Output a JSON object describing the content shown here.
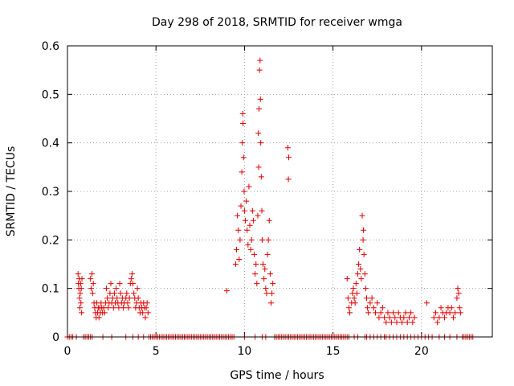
{
  "chart_data": {
    "type": "scatter",
    "title": "Day 298 of 2018, SRMTID for receiver wmga",
    "xlabel": "GPS time / hours",
    "ylabel": "SRMTID / TECUs",
    "xlim": [
      0,
      24
    ],
    "ylim": [
      0,
      0.6
    ],
    "xticks": [
      0,
      5,
      10,
      15,
      20
    ],
    "xtick_labels": [
      "0",
      "5",
      "10",
      "15",
      "20"
    ],
    "yticks": [
      0,
      0.1,
      0.2,
      0.3,
      0.4,
      0.5,
      0.6
    ],
    "ytick_labels": [
      "0",
      "0.1",
      "0.2",
      "0.3",
      "0.4",
      "0.5",
      "0.6"
    ],
    "grid": true,
    "marker": "plus",
    "series": [
      {
        "name": "SRMTID",
        "color": "#e00000",
        "points": [
          [
            0.6,
            0.13
          ],
          [
            0.62,
            0.11
          ],
          [
            0.64,
            0.1
          ],
          [
            0.66,
            0.12
          ],
          [
            0.68,
            0.08
          ],
          [
            0.7,
            0.06
          ],
          [
            0.72,
            0.09
          ],
          [
            0.74,
            0.11
          ],
          [
            0.76,
            0.07
          ],
          [
            0.78,
            0.1
          ],
          [
            0.8,
            0.05
          ],
          [
            0.82,
            0.12
          ],
          [
            1.3,
            0.12
          ],
          [
            1.34,
            0.1
          ],
          [
            1.38,
            0.13
          ],
          [
            1.42,
            0.09
          ],
          [
            1.46,
            0.11
          ],
          [
            1.5,
            0.07
          ],
          [
            1.54,
            0.06
          ],
          [
            1.58,
            0.05
          ],
          [
            1.62,
            0.04
          ],
          [
            1.66,
            0.07
          ],
          [
            1.7,
            0.05
          ],
          [
            1.74,
            0.06
          ],
          [
            1.78,
            0.04
          ],
          [
            1.82,
            0.06
          ],
          [
            1.86,
            0.05
          ],
          [
            1.9,
            0.07
          ],
          [
            1.94,
            0.06
          ],
          [
            1.98,
            0.05
          ],
          [
            2.05,
            0.06
          ],
          [
            2.1,
            0.05
          ],
          [
            2.15,
            0.07
          ],
          [
            2.2,
            0.1
          ],
          [
            2.25,
            0.08
          ],
          [
            2.3,
            0.06
          ],
          [
            2.35,
            0.07
          ],
          [
            2.4,
            0.09
          ],
          [
            2.45,
            0.11
          ],
          [
            2.5,
            0.07
          ],
          [
            2.55,
            0.08
          ],
          [
            2.6,
            0.06
          ],
          [
            2.65,
            0.09
          ],
          [
            2.7,
            0.07
          ],
          [
            2.75,
            0.1
          ],
          [
            2.8,
            0.08
          ],
          [
            2.85,
            0.07
          ],
          [
            2.9,
            0.06
          ],
          [
            2.95,
            0.11
          ],
          [
            3.0,
            0.09
          ],
          [
            3.05,
            0.07
          ],
          [
            3.1,
            0.08
          ],
          [
            3.15,
            0.06
          ],
          [
            3.2,
            0.07
          ],
          [
            3.3,
            0.08
          ],
          [
            3.35,
            0.09
          ],
          [
            3.4,
            0.07
          ],
          [
            3.45,
            0.06
          ],
          [
            3.5,
            0.08
          ],
          [
            3.55,
            0.11
          ],
          [
            3.6,
            0.12
          ],
          [
            3.65,
            0.13
          ],
          [
            3.7,
            0.11
          ],
          [
            3.75,
            0.09
          ],
          [
            3.8,
            0.08
          ],
          [
            3.85,
            0.06
          ],
          [
            3.9,
            0.07
          ],
          [
            3.95,
            0.1
          ],
          [
            4.0,
            0.08
          ],
          [
            4.05,
            0.06
          ],
          [
            4.1,
            0.05
          ],
          [
            4.15,
            0.07
          ],
          [
            4.2,
            0.06
          ],
          [
            4.25,
            0.05
          ],
          [
            4.3,
            0.07
          ],
          [
            4.35,
            0.06
          ],
          [
            4.4,
            0.04
          ],
          [
            4.45,
            0.06
          ],
          [
            4.5,
            0.07
          ],
          [
            4.55,
            0.05
          ],
          [
            9.0,
            0.095
          ],
          [
            9.5,
            0.15
          ],
          [
            9.55,
            0.18
          ],
          [
            9.6,
            0.25
          ],
          [
            9.65,
            0.22
          ],
          [
            9.7,
            0.16
          ],
          [
            9.75,
            0.2
          ],
          [
            9.8,
            0.27
          ],
          [
            9.85,
            0.34
          ],
          [
            9.88,
            0.4
          ],
          [
            9.9,
            0.46
          ],
          [
            9.92,
            0.44
          ],
          [
            9.95,
            0.37
          ],
          [
            9.98,
            0.3
          ],
          [
            10.0,
            0.26
          ],
          [
            10.05,
            0.24
          ],
          [
            10.1,
            0.28
          ],
          [
            10.15,
            0.22
          ],
          [
            10.2,
            0.19
          ],
          [
            10.25,
            0.31
          ],
          [
            10.3,
            0.23
          ],
          [
            10.35,
            0.18
          ],
          [
            10.4,
            0.2
          ],
          [
            10.45,
            0.26
          ],
          [
            10.5,
            0.24
          ],
          [
            10.55,
            0.17
          ],
          [
            10.6,
            0.13
          ],
          [
            10.65,
            0.15
          ],
          [
            10.7,
            0.11
          ],
          [
            10.75,
            0.25
          ],
          [
            10.78,
            0.42
          ],
          [
            10.8,
            0.35
          ],
          [
            10.82,
            0.47
          ],
          [
            10.85,
            0.55
          ],
          [
            10.88,
            0.57
          ],
          [
            10.9,
            0.49
          ],
          [
            10.92,
            0.4
          ],
          [
            10.95,
            0.33
          ],
          [
            10.98,
            0.26
          ],
          [
            11.0,
            0.2
          ],
          [
            11.05,
            0.15
          ],
          [
            11.1,
            0.12
          ],
          [
            11.15,
            0.14
          ],
          [
            11.2,
            0.1
          ],
          [
            11.25,
            0.09
          ],
          [
            11.3,
            0.17
          ],
          [
            11.35,
            0.2
          ],
          [
            11.4,
            0.24
          ],
          [
            11.45,
            0.13
          ],
          [
            11.5,
            0.07
          ],
          [
            11.55,
            0.09
          ],
          [
            11.6,
            0.11
          ],
          [
            12.45,
            0.39
          ],
          [
            12.5,
            0.37
          ],
          [
            12.48,
            0.325
          ],
          [
            15.8,
            0.12
          ],
          [
            15.85,
            0.08
          ],
          [
            15.9,
            0.06
          ],
          [
            15.95,
            0.05
          ],
          [
            16.05,
            0.07
          ],
          [
            16.1,
            0.09
          ],
          [
            16.15,
            0.1
          ],
          [
            16.2,
            0.08
          ],
          [
            16.25,
            0.07
          ],
          [
            16.3,
            0.11
          ],
          [
            16.35,
            0.09
          ],
          [
            16.4,
            0.13
          ],
          [
            16.45,
            0.15
          ],
          [
            16.5,
            0.18
          ],
          [
            16.55,
            0.14
          ],
          [
            16.6,
            0.12
          ],
          [
            16.65,
            0.25
          ],
          [
            16.7,
            0.2
          ],
          [
            16.72,
            0.22
          ],
          [
            16.75,
            0.17
          ],
          [
            16.8,
            0.13
          ],
          [
            16.85,
            0.1
          ],
          [
            16.9,
            0.08
          ],
          [
            16.95,
            0.06
          ],
          [
            17.0,
            0.05
          ],
          [
            17.1,
            0.07
          ],
          [
            17.2,
            0.08
          ],
          [
            17.3,
            0.06
          ],
          [
            17.4,
            0.05
          ],
          [
            17.5,
            0.07
          ],
          [
            17.6,
            0.04
          ],
          [
            17.7,
            0.05
          ],
          [
            17.8,
            0.06
          ],
          [
            17.9,
            0.04
          ],
          [
            18.0,
            0.03
          ],
          [
            18.1,
            0.05
          ],
          [
            18.2,
            0.04
          ],
          [
            18.3,
            0.03
          ],
          [
            18.4,
            0.05
          ],
          [
            18.5,
            0.04
          ],
          [
            18.6,
            0.03
          ],
          [
            18.7,
            0.05
          ],
          [
            18.8,
            0.04
          ],
          [
            18.9,
            0.03
          ],
          [
            19.0,
            0.04
          ],
          [
            19.1,
            0.05
          ],
          [
            19.2,
            0.03
          ],
          [
            19.3,
            0.04
          ],
          [
            19.4,
            0.05
          ],
          [
            19.5,
            0.03
          ],
          [
            19.6,
            0.04
          ],
          [
            20.3,
            0.07
          ],
          [
            20.7,
            0.04
          ],
          [
            20.8,
            0.05
          ],
          [
            20.9,
            0.03
          ],
          [
            21.0,
            0.04
          ],
          [
            21.1,
            0.06
          ],
          [
            21.2,
            0.05
          ],
          [
            21.3,
            0.04
          ],
          [
            21.4,
            0.05
          ],
          [
            21.5,
            0.06
          ],
          [
            21.6,
            0.05
          ],
          [
            21.7,
            0.06
          ],
          [
            21.8,
            0.04
          ],
          [
            21.9,
            0.05
          ],
          [
            22.0,
            0.08
          ],
          [
            22.05,
            0.1
          ],
          [
            22.1,
            0.09
          ],
          [
            22.15,
            0.06
          ],
          [
            22.2,
            0.05
          ]
        ],
        "zero_points_x": [
          0.0,
          0.1,
          0.2,
          0.3,
          0.5,
          0.9,
          1.0,
          1.1,
          1.2,
          1.3,
          1.4,
          2.0,
          2.5,
          3.3,
          3.7,
          4.0,
          4.3,
          4.6,
          4.7,
          4.8,
          4.9,
          5.0,
          5.1,
          5.2,
          5.3,
          5.4,
          5.5,
          5.6,
          5.7,
          5.8,
          5.9,
          6.0,
          6.1,
          6.2,
          6.3,
          6.4,
          6.5,
          6.6,
          6.7,
          6.8,
          6.9,
          7.0,
          7.1,
          7.2,
          7.3,
          7.4,
          7.5,
          7.6,
          7.7,
          7.8,
          7.9,
          8.0,
          8.1,
          8.2,
          8.3,
          8.4,
          8.5,
          8.6,
          8.7,
          8.8,
          8.9,
          9.0,
          9.1,
          9.2,
          9.3,
          9.4,
          10.0,
          10.6,
          11.0,
          11.2,
          11.7,
          11.8,
          11.9,
          12.0,
          12.1,
          12.2,
          12.3,
          12.4,
          12.5,
          12.6,
          12.7,
          12.8,
          12.9,
          13.0,
          13.1,
          13.2,
          13.3,
          13.4,
          13.5,
          13.6,
          13.7,
          13.8,
          13.9,
          14.0,
          14.1,
          14.2,
          14.3,
          14.4,
          14.5,
          14.6,
          14.7,
          14.8,
          14.9,
          15.0,
          15.1,
          15.2,
          15.3,
          15.4,
          15.5,
          15.6,
          15.7,
          15.8,
          15.9,
          16.2,
          16.4,
          16.8,
          16.9,
          17.1,
          17.3,
          17.5,
          17.7,
          17.9,
          18.0,
          18.2,
          18.4,
          18.6,
          18.8,
          19.0,
          19.2,
          19.4,
          19.6,
          19.8,
          20.0,
          20.2,
          20.4,
          20.6,
          21.0,
          21.3,
          21.6,
          22.0,
          22.3,
          22.4,
          22.5,
          22.6,
          22.7,
          22.8,
          22.9
        ]
      }
    ]
  }
}
